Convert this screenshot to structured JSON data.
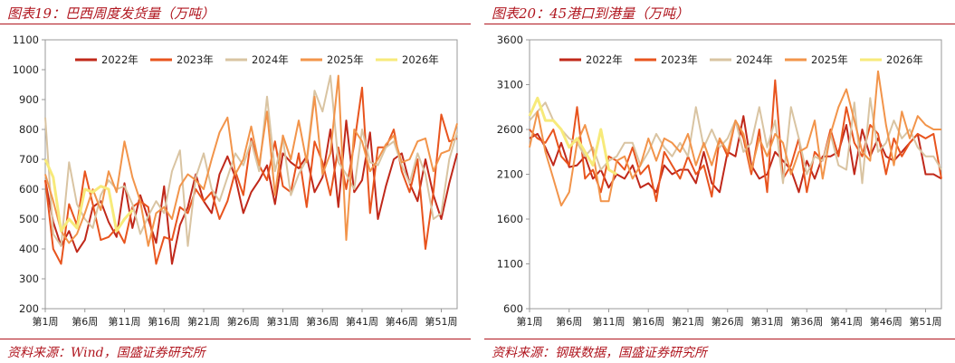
{
  "left": {
    "title": "图表19：巴西周度发货量（万吨）",
    "source": "资料来源：Wind，国盛证券研究所"
  },
  "right": {
    "title": "图表20：45港口到港量（万吨）",
    "source": "资料来源：钢联数据，国盛证券研究所"
  },
  "colors": {
    "2022年": "#c0281a",
    "2023年": "#e8541e",
    "2024年": "#d9c4a2",
    "2025年": "#f2944a",
    "2026年": "#f7ea7a",
    "frame": "#b0161f"
  },
  "chart_data": [
    {
      "type": "line",
      "ylim": [
        200,
        1100
      ],
      "yticks": [
        200,
        300,
        400,
        500,
        600,
        700,
        800,
        900,
        1000,
        1100
      ],
      "xlim": [
        1,
        53
      ],
      "xticks": [
        1,
        6,
        11,
        16,
        21,
        26,
        31,
        36,
        41,
        46,
        51
      ],
      "xticklabels": [
        "第1周",
        "第6周",
        "第11周",
        "第16周",
        "第21周",
        "第26周",
        "第31周",
        "第36周",
        "第41周",
        "第46周",
        "第51周"
      ],
      "legend": "top",
      "series": [
        {
          "name": "2022年",
          "values": [
            630,
            490,
            410,
            460,
            390,
            430,
            540,
            560,
            490,
            440,
            620,
            470,
            580,
            500,
            420,
            610,
            350,
            480,
            540,
            650,
            560,
            520,
            650,
            710,
            640,
            520,
            590,
            630,
            680,
            550,
            720,
            690,
            670,
            710,
            590,
            640,
            800,
            540,
            830,
            590,
            630,
            790,
            500,
            610,
            700,
            720,
            620,
            560,
            700,
            580,
            500,
            620,
            720
          ]
        },
        {
          "name": "2023年",
          "values": [
            630,
            400,
            350,
            550,
            480,
            660,
            550,
            430,
            440,
            470,
            420,
            540,
            560,
            540,
            350,
            440,
            430,
            540,
            520,
            600,
            560,
            590,
            500,
            560,
            660,
            580,
            770,
            680,
            630,
            760,
            610,
            590,
            720,
            540,
            760,
            690,
            580,
            740,
            600,
            750,
            940,
            520,
            740,
            740,
            800,
            660,
            590,
            700,
            400,
            590,
            850,
            760,
            770
          ]
        },
        {
          "name": "2024年",
          "values": [
            840,
            450,
            410,
            690,
            550,
            500,
            470,
            580,
            630,
            600,
            610,
            550,
            450,
            510,
            560,
            520,
            660,
            730,
            410,
            640,
            720,
            600,
            560,
            640,
            720,
            680,
            760,
            660,
            910,
            660,
            770,
            580,
            650,
            700,
            930,
            860,
            980,
            690,
            650,
            600,
            800,
            690,
            680,
            740,
            760,
            680,
            620,
            720,
            650,
            500,
            520,
            700,
            790
          ]
        },
        {
          "name": "2025年",
          "values": [
            650,
            560,
            460,
            420,
            450,
            520,
            600,
            530,
            660,
            590,
            760,
            640,
            560,
            410,
            520,
            540,
            500,
            610,
            650,
            630,
            600,
            700,
            790,
            840,
            650,
            700,
            810,
            680,
            860,
            580,
            780,
            700,
            830,
            690,
            910,
            650,
            720,
            980,
            430,
            800,
            760,
            660,
            700,
            750,
            780,
            690,
            700,
            760,
            770,
            660,
            720,
            730,
            820
          ]
        },
        {
          "name": "2026年",
          "values": [
            700,
            640,
            460,
            500,
            470,
            600,
            590,
            610,
            600,
            460,
            500,
            530
          ]
        }
      ]
    },
    {
      "type": "line",
      "ylim": [
        600,
        3600
      ],
      "yticks": [
        600,
        1100,
        1600,
        2100,
        2600,
        3100,
        3600
      ],
      "xlim": [
        1,
        53
      ],
      "xticks": [
        1,
        6,
        11,
        16,
        21,
        26,
        31,
        36,
        41,
        46,
        51
      ],
      "xticklabels": [
        "第1周",
        "第6周",
        "第11周",
        "第16周",
        "第21周",
        "第26周",
        "第31周",
        "第36周",
        "第41周",
        "第46周",
        "第51周"
      ],
      "legend": "top",
      "series": [
        {
          "name": "2022年",
          "values": [
            2500,
            2550,
            2400,
            2200,
            2450,
            2180,
            2200,
            2300,
            2050,
            2150,
            1950,
            2100,
            2050,
            2200,
            1950,
            2000,
            1900,
            2200,
            2100,
            2150,
            2150,
            2000,
            2350,
            2000,
            1900,
            2350,
            2300,
            2750,
            2200,
            2050,
            2100,
            2350,
            2250,
            2150,
            1900,
            2250,
            2050,
            2300,
            2300,
            2350,
            2650,
            2100,
            2600,
            2300,
            2500,
            2300,
            2250,
            2350,
            2450,
            2550,
            2100,
            2100,
            2050
          ]
        },
        {
          "name": "2023年",
          "values": [
            2600,
            2500,
            2450,
            2600,
            2300,
            2200,
            2850,
            2050,
            2150,
            1900,
            2300,
            2250,
            2150,
            2400,
            2100,
            2200,
            1800,
            2350,
            2200,
            2050,
            2300,
            2100,
            2200,
            1850,
            2500,
            2300,
            2700,
            2500,
            2100,
            2600,
            1900,
            3150,
            2050,
            2200,
            2500,
            1900,
            2350,
            2250,
            2600,
            2300,
            2850,
            2450,
            2300,
            2650,
            2550,
            2100,
            2500,
            2300,
            2450,
            2550,
            2500,
            2550,
            2050
          ]
        },
        {
          "name": "2024年",
          "values": [
            2700,
            2800,
            2900,
            2700,
            2600,
            2500,
            2450,
            2300,
            2400,
            2150,
            2250,
            2300,
            2450,
            2450,
            2200,
            2350,
            2550,
            2400,
            2300,
            2450,
            2300,
            2850,
            2400,
            2600,
            2400,
            2500,
            2700,
            2350,
            2450,
            2850,
            2400,
            2700,
            2000,
            2850,
            2500,
            2100,
            2300,
            2250,
            2550,
            2200,
            2150,
            2900,
            2000,
            2950,
            2350,
            2450,
            2700,
            2500,
            2600,
            2400,
            2300,
            2300,
            2150
          ]
        },
        {
          "name": "2025年",
          "values": [
            2400,
            2800,
            2350,
            2050,
            1750,
            1900,
            2450,
            2650,
            2350,
            1800,
            1800,
            2250,
            2300,
            2050,
            2200,
            2500,
            2250,
            2500,
            2450,
            2350,
            2550,
            2200,
            2450,
            2200,
            2500,
            2350,
            2700,
            2550,
            2150,
            2500,
            2300,
            2550,
            2450,
            2100,
            2350,
            2400,
            2700,
            2050,
            2550,
            2850,
            3050,
            2700,
            2350,
            2250,
            3250,
            2650,
            2200,
            2800,
            2500,
            2750,
            2650,
            2600,
            2600
          ]
        },
        {
          "name": "2026年",
          "values": [
            2750,
            2950,
            2700,
            2700,
            2600,
            2400,
            2500,
            2350,
            2200,
            2600,
            2150,
            2100
          ]
        }
      ]
    }
  ]
}
